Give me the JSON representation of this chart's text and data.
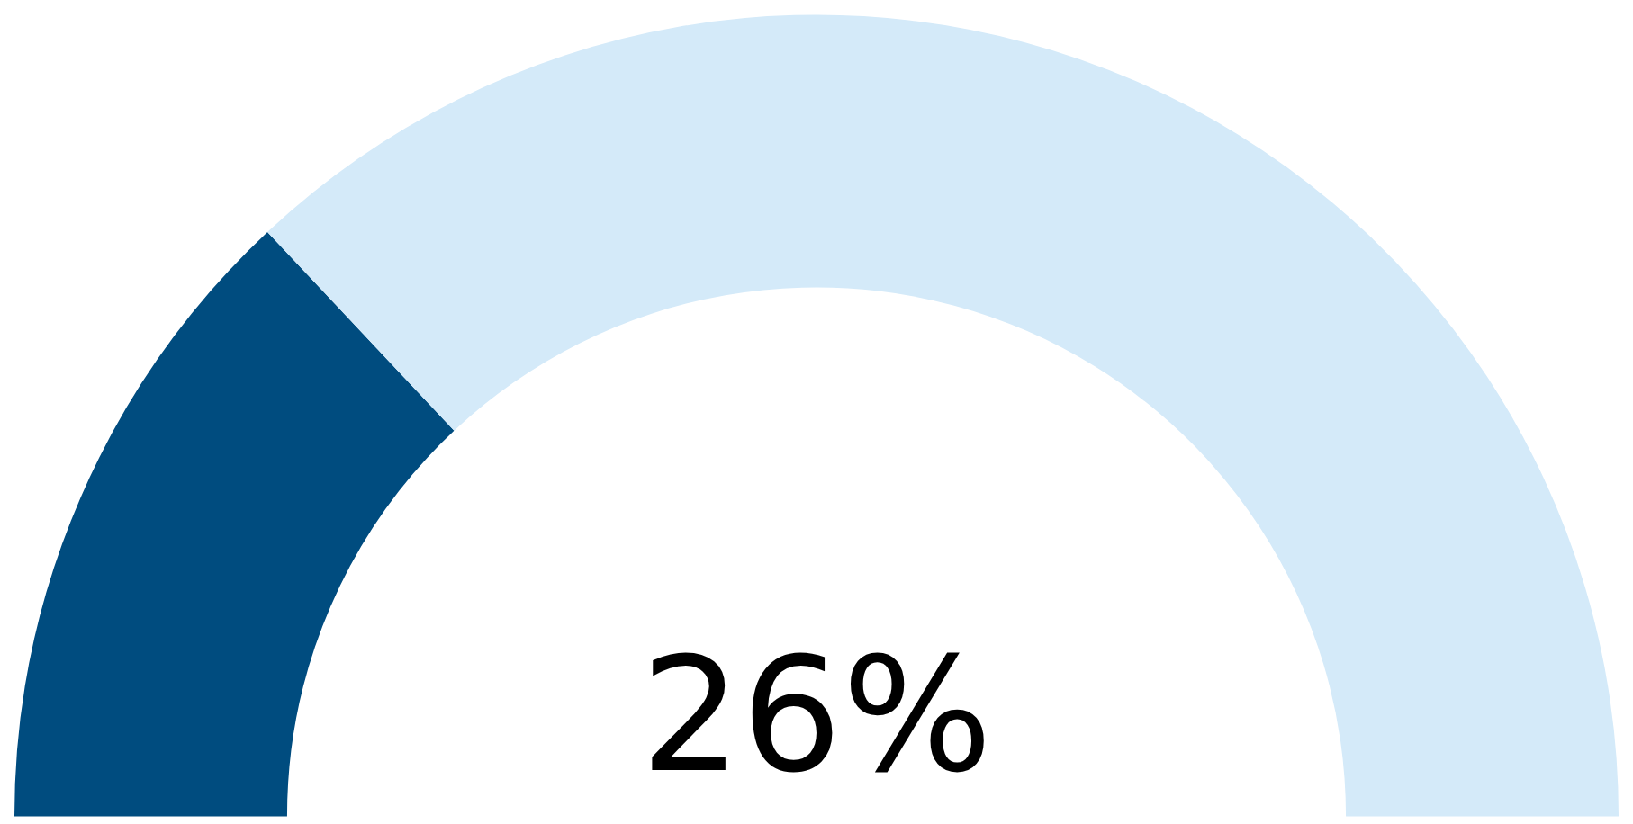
{
  "chart_data": {
    "type": "donut",
    "categories": [
      null,
      null
    ],
    "values": [
      26,
      74
    ],
    "colors": [
      "#004c7f",
      "#d4eaf9"
    ],
    "annotations": [
      "26%"
    ]
  }
}
